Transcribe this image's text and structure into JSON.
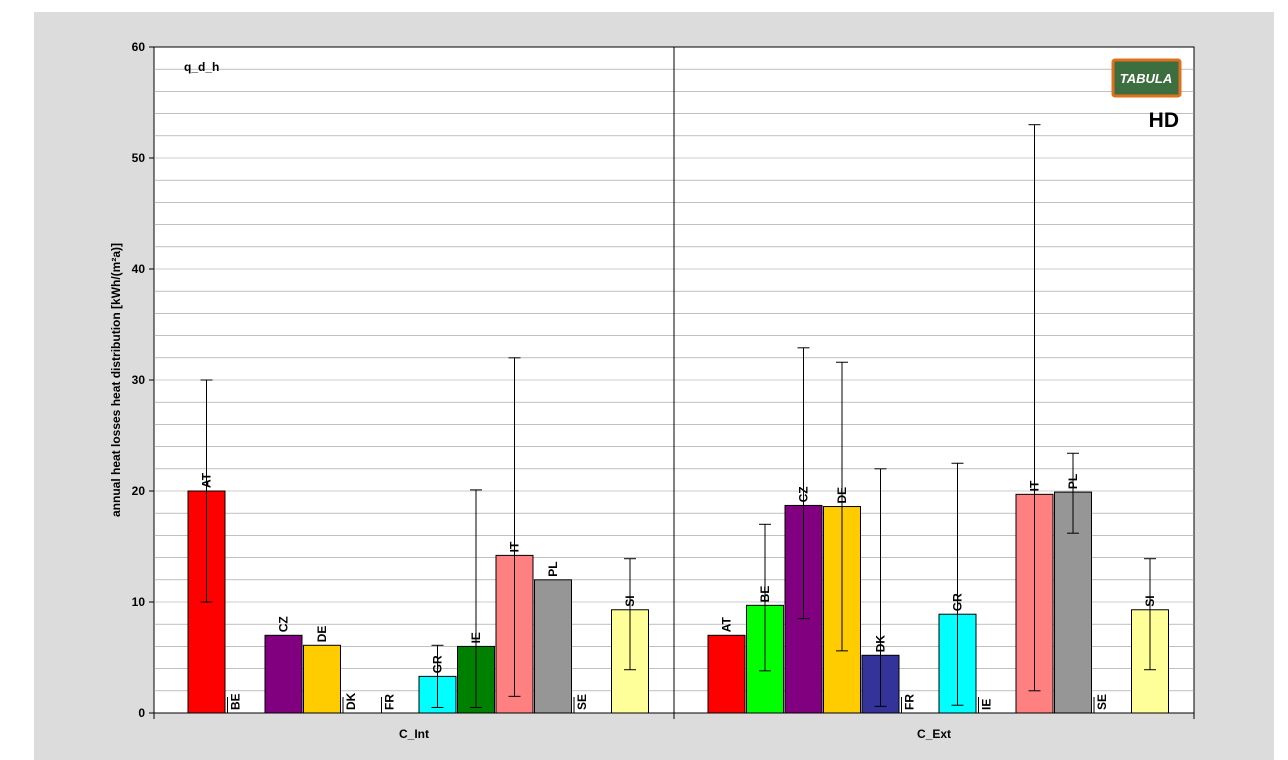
{
  "chart_data": {
    "type": "bar",
    "title": "q_d_h",
    "badge": "HD",
    "logo_text": "TABULA",
    "ylabel": "annual heat losses heat distribution [kWh/(m²a)]",
    "ylim": [
      0,
      60
    ],
    "yticks": [
      0,
      10,
      20,
      30,
      40,
      50,
      60
    ],
    "ytick_labels": [
      "0",
      "10",
      "20",
      "30",
      "40",
      "50",
      "60"
    ],
    "grid": true,
    "groups": [
      {
        "name": "C_Int",
        "bars": [
          {
            "label": "AT",
            "value": 20.0,
            "err_low": 10.0,
            "err_high": 30.0,
            "color": "#ff0000"
          },
          {
            "label": "BE",
            "value": 0,
            "color": "#00ff00"
          },
          {
            "label": "CZ",
            "value": 7.0,
            "color": "#800080"
          },
          {
            "label": "DE",
            "value": 6.1,
            "color": "#ffcc00"
          },
          {
            "label": "DK",
            "value": 0,
            "color": "#333399"
          },
          {
            "label": "FR",
            "value": 0,
            "color": "#99ccff"
          },
          {
            "label": "GR",
            "value": 3.3,
            "err_low": 0.5,
            "err_high": 6.1,
            "color": "#00ffff"
          },
          {
            "label": "IE",
            "value": 6.0,
            "err_low": 0.5,
            "err_high": 20.1,
            "color": "#008000"
          },
          {
            "label": "IT",
            "value": 14.2,
            "err_low": 1.5,
            "err_high": 32.0,
            "color": "#ff8080"
          },
          {
            "label": "PL",
            "value": 12.0,
            "color": "#969696"
          },
          {
            "label": "SE",
            "value": 0,
            "color": "#ccffff"
          },
          {
            "label": "SI",
            "value": 9.3,
            "err_low": 3.9,
            "err_high": 13.9,
            "color": "#ffff99"
          }
        ]
      },
      {
        "name": "C_Ext",
        "bars": [
          {
            "label": "AT",
            "value": 7.0,
            "color": "#ff0000"
          },
          {
            "label": "BE",
            "value": 9.7,
            "err_low": 3.8,
            "err_high": 17.0,
            "color": "#00ff00"
          },
          {
            "label": "CZ",
            "value": 18.7,
            "err_low": 8.5,
            "err_high": 32.9,
            "color": "#800080"
          },
          {
            "label": "DE",
            "value": 18.6,
            "err_low": 5.6,
            "err_high": 31.6,
            "color": "#ffcc00"
          },
          {
            "label": "DK",
            "value": 5.2,
            "err_low": 0.6,
            "err_high": 22.0,
            "color": "#333399"
          },
          {
            "label": "FR",
            "value": 0,
            "color": "#99ccff"
          },
          {
            "label": "GR",
            "value": 8.9,
            "err_low": 0.7,
            "err_high": 22.5,
            "color": "#00ffff"
          },
          {
            "label": "IE",
            "value": 0,
            "color": "#008000"
          },
          {
            "label": "IT",
            "value": 19.7,
            "err_low": 2.0,
            "err_high": 53.0,
            "color": "#ff8080"
          },
          {
            "label": "PL",
            "value": 19.9,
            "err_low": 16.2,
            "err_high": 23.4,
            "color": "#969696"
          },
          {
            "label": "SE",
            "value": 0,
            "color": "#ccffff"
          },
          {
            "label": "SI",
            "value": 9.3,
            "err_low": 3.9,
            "err_high": 13.9,
            "color": "#ffff99"
          }
        ]
      }
    ]
  }
}
